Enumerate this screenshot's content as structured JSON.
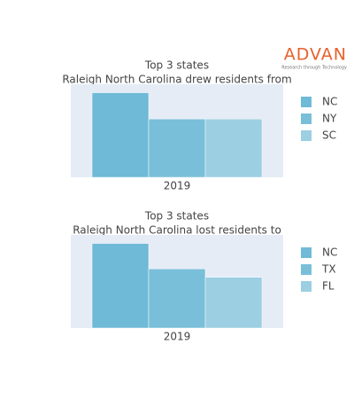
{
  "logo": {
    "name": "ADVAN",
    "tagline": "Research through Technology"
  },
  "chart_data": [
    {
      "type": "bar",
      "title": "Top 3 states",
      "subtitle": "Raleigh North Carolina drew residents from",
      "categories": [
        "2019"
      ],
      "ylim": [
        0,
        110
      ],
      "series": [
        {
          "name": "NC",
          "color": "#6fbad6",
          "values": [
            100
          ]
        },
        {
          "name": "NY",
          "color": "#79bfd9",
          "values": [
            69
          ]
        },
        {
          "name": "SC",
          "color": "#9ccfe2",
          "values": [
            69
          ]
        }
      ]
    },
    {
      "type": "bar",
      "title": "Top 3 states",
      "subtitle": "Raleigh North Carolina lost residents to",
      "categories": [
        "2019"
      ],
      "ylim": [
        0,
        110
      ],
      "series": [
        {
          "name": "NC",
          "color": "#6fbad6",
          "values": [
            100
          ]
        },
        {
          "name": "TX",
          "color": "#79bfd9",
          "values": [
            70
          ]
        },
        {
          "name": "FL",
          "color": "#9ccfe2",
          "values": [
            60
          ]
        }
      ]
    }
  ]
}
